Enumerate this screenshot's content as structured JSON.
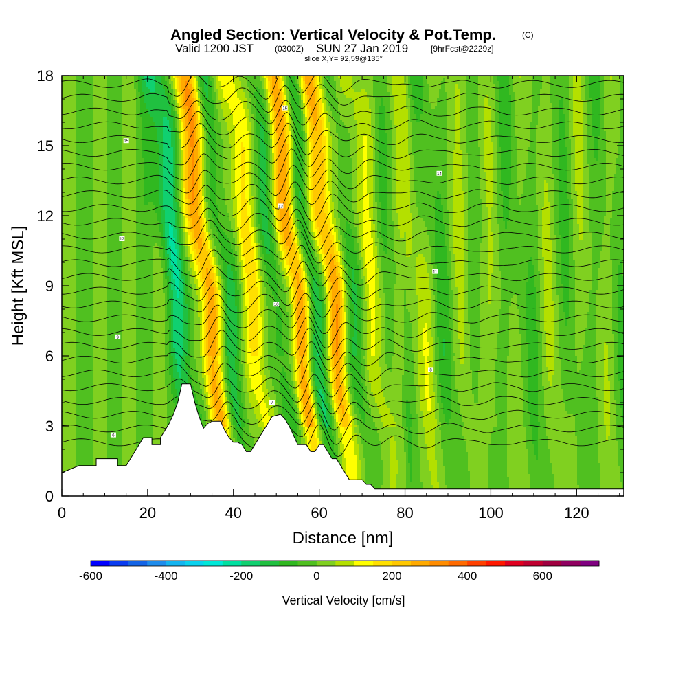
{
  "title": {
    "main": "Angled Section: Vertical Velocity & Pot.Temp.",
    "main_units": "(C)",
    "valid_prefix": "Valid 1200 JST",
    "valid_utc": "(0300Z)",
    "valid_date": "SUN 27 Jan 2019",
    "forecast": "[9hrFcst@2229z]",
    "slice": "slice X,Y= 92,59@135°"
  },
  "chart_data": {
    "type": "heatmap",
    "xlabel": "Distance [nm]",
    "ylabel": "Height [Kft MSL]",
    "xlim": [
      0,
      131
    ],
    "ylim": [
      0,
      18
    ],
    "x_ticks": [
      "0",
      "20",
      "40",
      "60",
      "80",
      "100",
      "120"
    ],
    "y_ticks": [
      "0",
      "3",
      "6",
      "9",
      "12",
      "15",
      "18"
    ],
    "grid": false,
    "colorbar": {
      "label": "Vertical Velocity [cm/s]",
      "ticks": [
        "-600",
        "-400",
        "-200",
        "0",
        "200",
        "400",
        "600"
      ],
      "range": [
        -600,
        750
      ],
      "step": 50,
      "colors": [
        "#0000ff",
        "#0a3cf0",
        "#1464e6",
        "#1e8cec",
        "#14b4f0",
        "#0ad2ee",
        "#00e8d8",
        "#00e0a0",
        "#10d070",
        "#20c040",
        "#30b820",
        "#50c020",
        "#80d020",
        "#b4e000",
        "#ffff00",
        "#ffe000",
        "#ffc800",
        "#ffaa00",
        "#ff8c00",
        "#ff6a00",
        "#ff4000",
        "#ff1800",
        "#e00020",
        "#c00030",
        "#a00040",
        "#900060",
        "#800080"
      ]
    },
    "background_velocity_cm_s": 0,
    "waves": [
      {
        "x_base_nm": 29.5,
        "amplitude_cm_s": -180
      },
      {
        "x_base_nm": 36.5,
        "amplitude_cm_s": 300
      },
      {
        "x_base_nm": 40.5,
        "amplitude_cm_s": -120
      },
      {
        "x_base_nm": 47.0,
        "amplitude_cm_s": 160
      },
      {
        "x_base_nm": 52.5,
        "amplitude_cm_s": -100
      },
      {
        "x_base_nm": 57.5,
        "amplitude_cm_s": 340
      },
      {
        "x_base_nm": 60.5,
        "amplitude_cm_s": -200
      },
      {
        "x_base_nm": 65.5,
        "amplitude_cm_s": 280
      },
      {
        "x_base_nm": 70.0,
        "amplitude_cm_s": -80
      },
      {
        "x_base_nm": 75.0,
        "amplitude_cm_s": 100
      },
      {
        "x_base_nm": 80.0,
        "amplitude_cm_s": -30
      },
      {
        "x_base_nm": 86.0,
        "amplitude_cm_s": 60
      },
      {
        "x_base_nm": 92.0,
        "amplitude_cm_s": -40
      },
      {
        "x_base_nm": 100.0,
        "amplitude_cm_s": 40
      },
      {
        "x_base_nm": 108.0,
        "amplitude_cm_s": -30
      }
    ],
    "terrain_kft": [
      [
        0,
        1.0
      ],
      [
        4,
        1.3
      ],
      [
        8,
        1.3
      ],
      [
        8,
        1.6
      ],
      [
        13,
        1.6
      ],
      [
        13,
        1.3
      ],
      [
        15,
        1.3
      ],
      [
        16,
        1.6
      ],
      [
        17,
        1.9
      ],
      [
        18,
        2.2
      ],
      [
        19,
        2.5
      ],
      [
        21,
        2.5
      ],
      [
        21,
        2.2
      ],
      [
        23,
        2.2
      ],
      [
        23,
        2.5
      ],
      [
        24,
        2.8
      ],
      [
        25,
        3.1
      ],
      [
        26,
        3.5
      ],
      [
        27,
        4.0
      ],
      [
        28,
        4.8
      ],
      [
        30,
        4.8
      ],
      [
        31,
        4.0
      ],
      [
        32,
        3.4
      ],
      [
        33,
        2.9
      ],
      [
        34,
        3.1
      ],
      [
        35,
        3.2
      ],
      [
        37,
        3.2
      ],
      [
        38,
        2.8
      ],
      [
        39,
        2.5
      ],
      [
        40,
        2.3
      ],
      [
        41,
        2.3
      ],
      [
        42,
        2.2
      ],
      [
        43,
        1.9
      ],
      [
        44,
        1.9
      ],
      [
        45,
        2.2
      ],
      [
        46,
        2.5
      ],
      [
        47,
        2.8
      ],
      [
        48,
        3.1
      ],
      [
        49,
        3.4
      ],
      [
        51,
        3.5
      ],
      [
        52,
        3.3
      ],
      [
        53,
        3.0
      ],
      [
        54,
        2.6
      ],
      [
        55,
        2.2
      ],
      [
        57,
        2.2
      ],
      [
        58,
        1.9
      ],
      [
        59,
        1.9
      ],
      [
        60,
        2.2
      ],
      [
        61,
        2.2
      ],
      [
        62,
        1.9
      ],
      [
        63,
        1.6
      ],
      [
        64,
        1.6
      ],
      [
        65,
        1.3
      ],
      [
        66,
        1.0
      ],
      [
        67,
        0.7
      ],
      [
        70,
        0.7
      ],
      [
        71,
        0.5
      ],
      [
        72,
        0.5
      ],
      [
        73,
        0.3
      ],
      [
        131,
        0.3
      ]
    ],
    "theta_levels": {
      "base_kft": 2.3,
      "spacing_kft": 0.59,
      "count": 27
    },
    "sample_contour_labels": [
      "6",
      "7",
      "8",
      "9",
      "10",
      "11",
      "12",
      "13",
      "14",
      "15",
      "16"
    ]
  }
}
